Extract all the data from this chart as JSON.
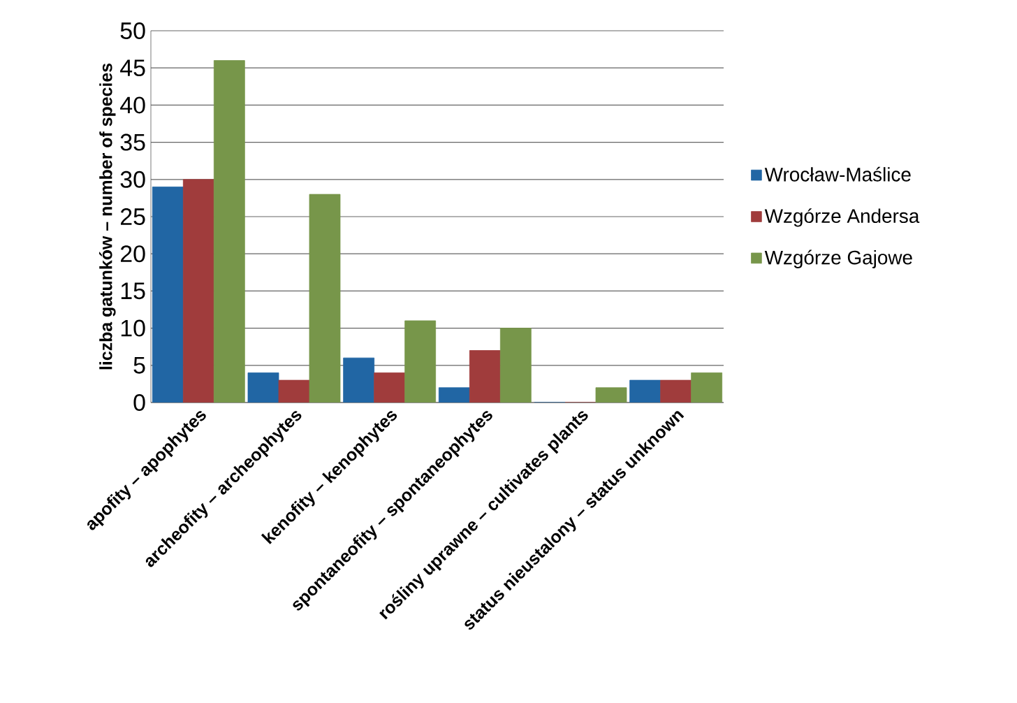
{
  "chart_data": {
    "type": "bar",
    "ylabel": "liczba gatunków – number of species",
    "categories": [
      "apofity – apophytes",
      "archeofity – archeophytes",
      "kenofity – kenophytes",
      "spontaneofity – spontaneophytes",
      "rośliny uprawne – cultivates plants",
      "status nieustalony – status unknown"
    ],
    "series": [
      {
        "name": "Wrocław-Maślice",
        "color": "#2166a4",
        "values": [
          29,
          4,
          6,
          2,
          0,
          3
        ]
      },
      {
        "name": "Wzgórze Andersa",
        "color": "#a03c3c",
        "values": [
          30,
          3,
          4,
          7,
          0,
          3
        ]
      },
      {
        "name": "Wzgórze Gajowe",
        "color": "#77964a",
        "values": [
          46,
          28,
          11,
          10,
          2,
          4
        ]
      }
    ],
    "ylim": [
      0,
      50
    ],
    "yticks": [
      0,
      5,
      10,
      15,
      20,
      25,
      30,
      35,
      40,
      45,
      50
    ],
    "grid": "y",
    "legend": "right"
  }
}
